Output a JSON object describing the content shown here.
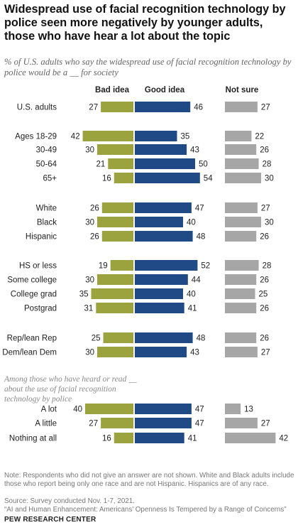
{
  "title": "Widespread use of facial recognition technology by police seen more negatively by younger adults, those who have hear a lot about the topic",
  "subtitle": "% of U.S. adults who say the widespread use of facial recognition technology by police would be a __ for society",
  "group_note": "Among those who have heard or read __ about the use of facial recognition technology by police",
  "footer": {
    "note": "Note: Respondents who did not give an answer are not shown. White and Black adults include those who report being only one race and are not Hispanic. Hispanics are of any race.",
    "source": "Source: Survey conducted Nov. 1-7, 2021.",
    "report": "“AI and Human Enhancement: Americans’ Openness Is Tempered by a Range of Concerns”",
    "brand": "PEW RESEARCH CENTER"
  },
  "colors": {
    "bad": "#9aa33d",
    "good": "#1f4a85",
    "notsure": "#a6a6a6"
  },
  "chart_data": {
    "type": "bar",
    "series": [
      {
        "name": "Bad idea",
        "values": [
          27,
          42,
          30,
          21,
          16,
          26,
          30,
          26,
          19,
          30,
          35,
          31,
          25,
          30,
          40,
          27,
          16
        ]
      },
      {
        "name": "Good idea",
        "values": [
          46,
          35,
          43,
          50,
          54,
          47,
          40,
          48,
          52,
          44,
          40,
          41,
          48,
          43,
          47,
          47,
          41
        ]
      },
      {
        "name": "Not sure",
        "values": [
          27,
          22,
          26,
          28,
          30,
          27,
          30,
          26,
          28,
          26,
          25,
          26,
          26,
          27,
          13,
          27,
          42
        ]
      }
    ],
    "categories": [
      "U.S. adults",
      "Ages 18-29",
      "30-49",
      "50-64",
      "65+",
      "White",
      "Black",
      "Hispanic",
      "HS or less",
      "Some college",
      "College grad",
      "Postgrad",
      "Rep/lean Rep",
      "Dem/lean Dem",
      "A lot",
      "A little",
      "Nothing at all"
    ]
  }
}
